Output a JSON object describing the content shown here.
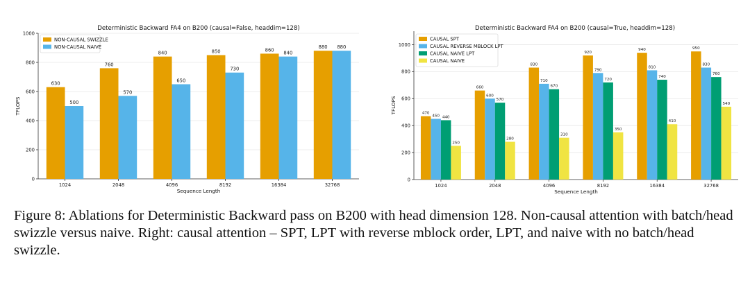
{
  "chart_data": [
    {
      "type": "bar",
      "title": "Deterministic Backward FA4 on B200 (causal=False, headdim=128)",
      "xlabel": "Sequence Length",
      "ylabel": "TFLOPS",
      "categories": [
        "1024",
        "2048",
        "4096",
        "8192",
        "16384",
        "32768"
      ],
      "ylim": [
        0,
        1000
      ],
      "yticks": [
        0,
        200,
        400,
        600,
        800,
        1000
      ],
      "legend_position": "top-left",
      "series": [
        {
          "name": "NON-CAUSAL SWIZZLE",
          "color": "#e69f00",
          "values": [
            630,
            760,
            840,
            850,
            860,
            880
          ]
        },
        {
          "name": "NON-CAUSAL NAIVE",
          "color": "#56b4e9",
          "values": [
            500,
            570,
            650,
            730,
            840,
            880
          ]
        }
      ]
    },
    {
      "type": "bar",
      "title": "Deterministic Backward FA4 on B200 (causal=True, headdim=128)",
      "xlabel": "Sequence Length",
      "ylabel": "TFLOPS",
      "categories": [
        "1024",
        "2048",
        "4096",
        "8192",
        "16384",
        "32768"
      ],
      "ylim": [
        0,
        1100
      ],
      "yticks": [
        0,
        200,
        400,
        600,
        800,
        1000
      ],
      "legend_position": "top-left",
      "series": [
        {
          "name": "CAUSAL SPT",
          "color": "#e69f00",
          "values": [
            470,
            660,
            830,
            920,
            940,
            950
          ]
        },
        {
          "name": "CAUSAL REVERSE MBLOCK LPT",
          "color": "#56b4e9",
          "values": [
            450,
            600,
            710,
            790,
            810,
            830
          ]
        },
        {
          "name": "CAUSAL NAIVE LPT",
          "color": "#009e73",
          "values": [
            440,
            570,
            670,
            720,
            740,
            760
          ]
        },
        {
          "name": "CAUSAL NAIVE",
          "color": "#f0e442",
          "values": [
            250,
            280,
            310,
            350,
            410,
            540
          ]
        }
      ]
    }
  ],
  "caption": "Figure 8: Ablations for Deterministic Backward pass on B200 with head dimension 128. Non-causal attention with batch/head swizzle versus naive. Right: causal attention – SPT, LPT with reverse mblock order, LPT, and naive with no batch/head swizzle."
}
